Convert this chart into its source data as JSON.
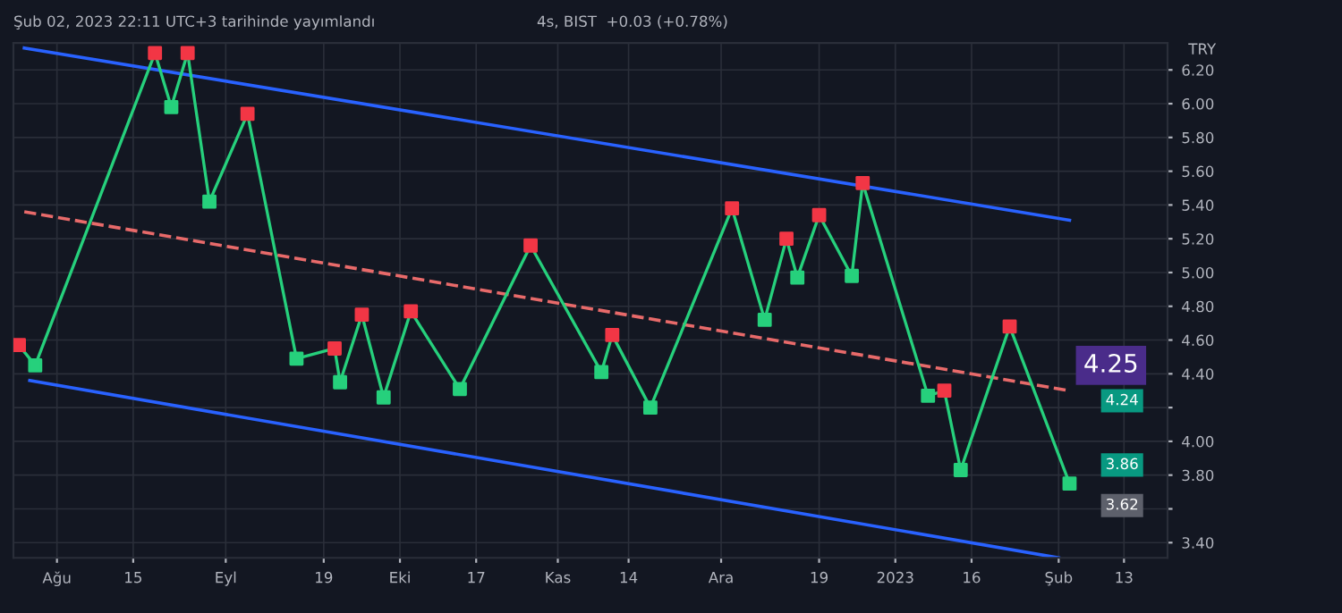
{
  "chart_data": {
    "type": "line",
    "series": [
      {
        "name": null,
        "color": "#2962ff",
        "line_style": "solid",
        "marker": "none",
        "x": [
          "2022-07-26",
          "2023-02-03"
        ],
        "values": [
          6.33,
          5.31
        ]
      },
      {
        "name": null,
        "color": "#e86a6a",
        "line_style": "dashed",
        "marker": "none",
        "x": [
          "2022-07-26",
          "2023-02-03"
        ],
        "values": [
          5.36,
          4.3
        ]
      },
      {
        "name": null,
        "color": "#2962ff",
        "line_style": "solid",
        "marker": "none",
        "x": [
          "2022-07-27",
          "2023-02-01"
        ],
        "values": [
          4.36,
          3.31
        ]
      },
      {
        "name": null,
        "color": "#26d07c",
        "line_style": "solid",
        "marker": "square",
        "colors": [
          "#f23645",
          "#26d07c",
          "#f23645",
          "#26d07c",
          "#f23645",
          "#26d07c",
          "#f23645",
          "#26d07c",
          "#f23645",
          "#26d07c",
          "#f23645",
          "#26d07c",
          "#f23645",
          "#26d07c",
          "#f23645",
          "#26d07c",
          "#f23645",
          "#26d07c",
          "#f23645",
          "#26d07c",
          "#f23645",
          "#26d07c",
          "#f23645",
          "#26d07c",
          "#f23645",
          "#26d07c",
          "#f23645",
          "#26d07c",
          "#f23645",
          "#26d07c"
        ],
        "x": [
          "2022-07-25",
          "2022-07-28",
          "2022-08-19",
          "2022-08-22",
          "2022-08-25",
          "2022-08-29",
          "2022-09-05",
          "2022-09-14",
          "2022-09-21",
          "2022-09-22",
          "2022-09-26",
          "2022-09-30",
          "2022-10-05",
          "2022-10-14",
          "2022-10-27",
          "2022-11-09",
          "2022-11-11",
          "2022-11-18",
          "2022-12-03",
          "2022-12-09",
          "2022-12-13",
          "2022-12-15",
          "2022-12-19",
          "2022-12-25",
          "2022-12-27",
          "2023-01-08",
          "2023-01-11",
          "2023-01-14",
          "2023-01-23",
          "2023-02-03"
        ],
        "values": [
          4.57,
          4.45,
          6.3,
          5.98,
          6.3,
          5.42,
          5.94,
          4.49,
          4.55,
          4.35,
          4.75,
          4.26,
          4.77,
          4.31,
          5.16,
          4.41,
          4.63,
          4.2,
          5.38,
          4.72,
          5.2,
          4.97,
          5.34,
          4.98,
          5.53,
          4.27,
          4.3,
          3.83,
          4.68,
          3.75
        ]
      }
    ],
    "xlim": [
      "2022-07-24",
      "2023-02-21"
    ],
    "xticks": [
      {
        "value": "2022-08-01",
        "label": "Ağu"
      },
      {
        "value": "2022-08-15",
        "label": "15"
      },
      {
        "value": "2022-09-01",
        "label": "Eyl"
      },
      {
        "value": "2022-09-19",
        "label": "19"
      },
      {
        "value": "2022-10-03",
        "label": "Eki"
      },
      {
        "value": "2022-10-17",
        "label": "17"
      },
      {
        "value": "2022-11-01",
        "label": "Kas"
      },
      {
        "value": "2022-11-14",
        "label": "14"
      },
      {
        "value": "2022-12-01",
        "label": "Ara"
      },
      {
        "value": "2022-12-19",
        "label": "19"
      },
      {
        "value": "2023-01-02",
        "label": "2023"
      },
      {
        "value": "2023-01-16",
        "label": "16"
      },
      {
        "value": "2023-02-01",
        "label": "Şub"
      },
      {
        "value": "2023-02-13",
        "label": "13"
      }
    ],
    "ylim": [
      3.31,
      6.36
    ],
    "yticks": [
      {
        "value": 3.4,
        "label": "3.40"
      },
      {
        "value": 3.6,
        "label": null
      },
      {
        "value": 3.8,
        "label": "3.80"
      },
      {
        "value": 4.0,
        "label": "4.00"
      },
      {
        "value": 4.2,
        "label": null
      },
      {
        "value": 4.4,
        "label": "4.40"
      },
      {
        "value": 4.6,
        "label": "4.60"
      },
      {
        "value": 4.8,
        "label": "4.80"
      },
      {
        "value": 5.0,
        "label": "5.00"
      },
      {
        "value": 5.2,
        "label": "5.20"
      },
      {
        "value": 5.4,
        "label": "5.40"
      },
      {
        "value": 5.6,
        "label": "5.60"
      },
      {
        "value": 5.8,
        "label": "5.80"
      },
      {
        "value": 6.0,
        "label": "6.00"
      },
      {
        "value": 6.2,
        "label": "6.20"
      }
    ],
    "ylabel": "TRY",
    "grid": true,
    "annotations": [
      "Şub 02, 2023 22:11 UTC+3 tarihinde yayımlandı",
      "4s, BIST  +0.03 (+0.78%)",
      "4.25",
      "4.24",
      "3.86",
      "3.62"
    ]
  }
}
